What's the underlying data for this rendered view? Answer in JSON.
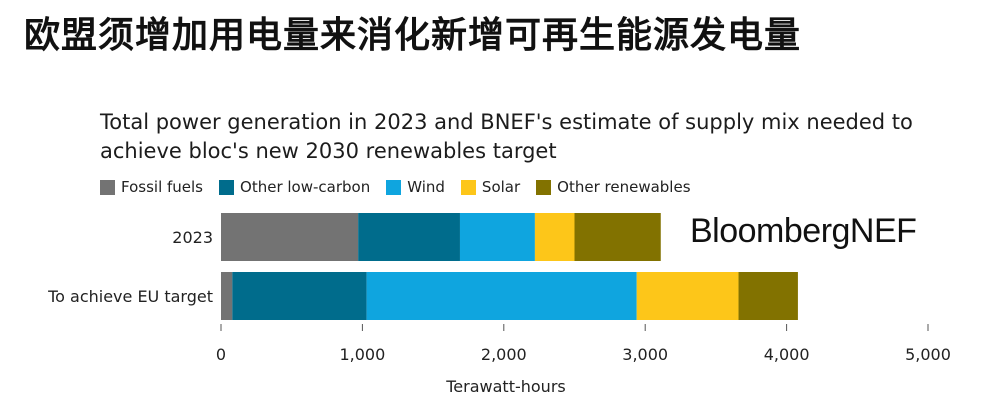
{
  "headline": "欧盟须增加用电量来消化新增可再生能源发电量",
  "subtitle": "Total power generation in 2023 and BNEF's estimate of supply mix needed to achieve bloc's new 2030 renewables target",
  "brand": "BloombergNEF",
  "chart_data": {
    "type": "bar",
    "orientation": "horizontal",
    "stacked": true,
    "categories": [
      "2023",
      "To achieve EU target"
    ],
    "series": [
      {
        "name": "Fossil fuels",
        "color": "#737373",
        "values": [
          970,
          80
        ]
      },
      {
        "name": "Other low-carbon",
        "color": "#006c8c",
        "values": [
          720,
          950
        ]
      },
      {
        "name": "Wind",
        "color": "#0fa5df",
        "values": [
          530,
          1910
        ]
      },
      {
        "name": "Solar",
        "color": "#fdc619",
        "values": [
          280,
          720
        ]
      },
      {
        "name": "Other renewables",
        "color": "#827200",
        "values": [
          610,
          420
        ]
      }
    ],
    "xlabel": "Terawatt-hours",
    "xlim": [
      0,
      5000
    ],
    "xticks": [
      0,
      1000,
      2000,
      3000,
      4000,
      5000
    ],
    "xtick_labels": [
      "0",
      "1,000",
      "2,000",
      "3,000",
      "4,000",
      "5,000"
    ],
    "grid": false,
    "legend_position": "top-left"
  }
}
